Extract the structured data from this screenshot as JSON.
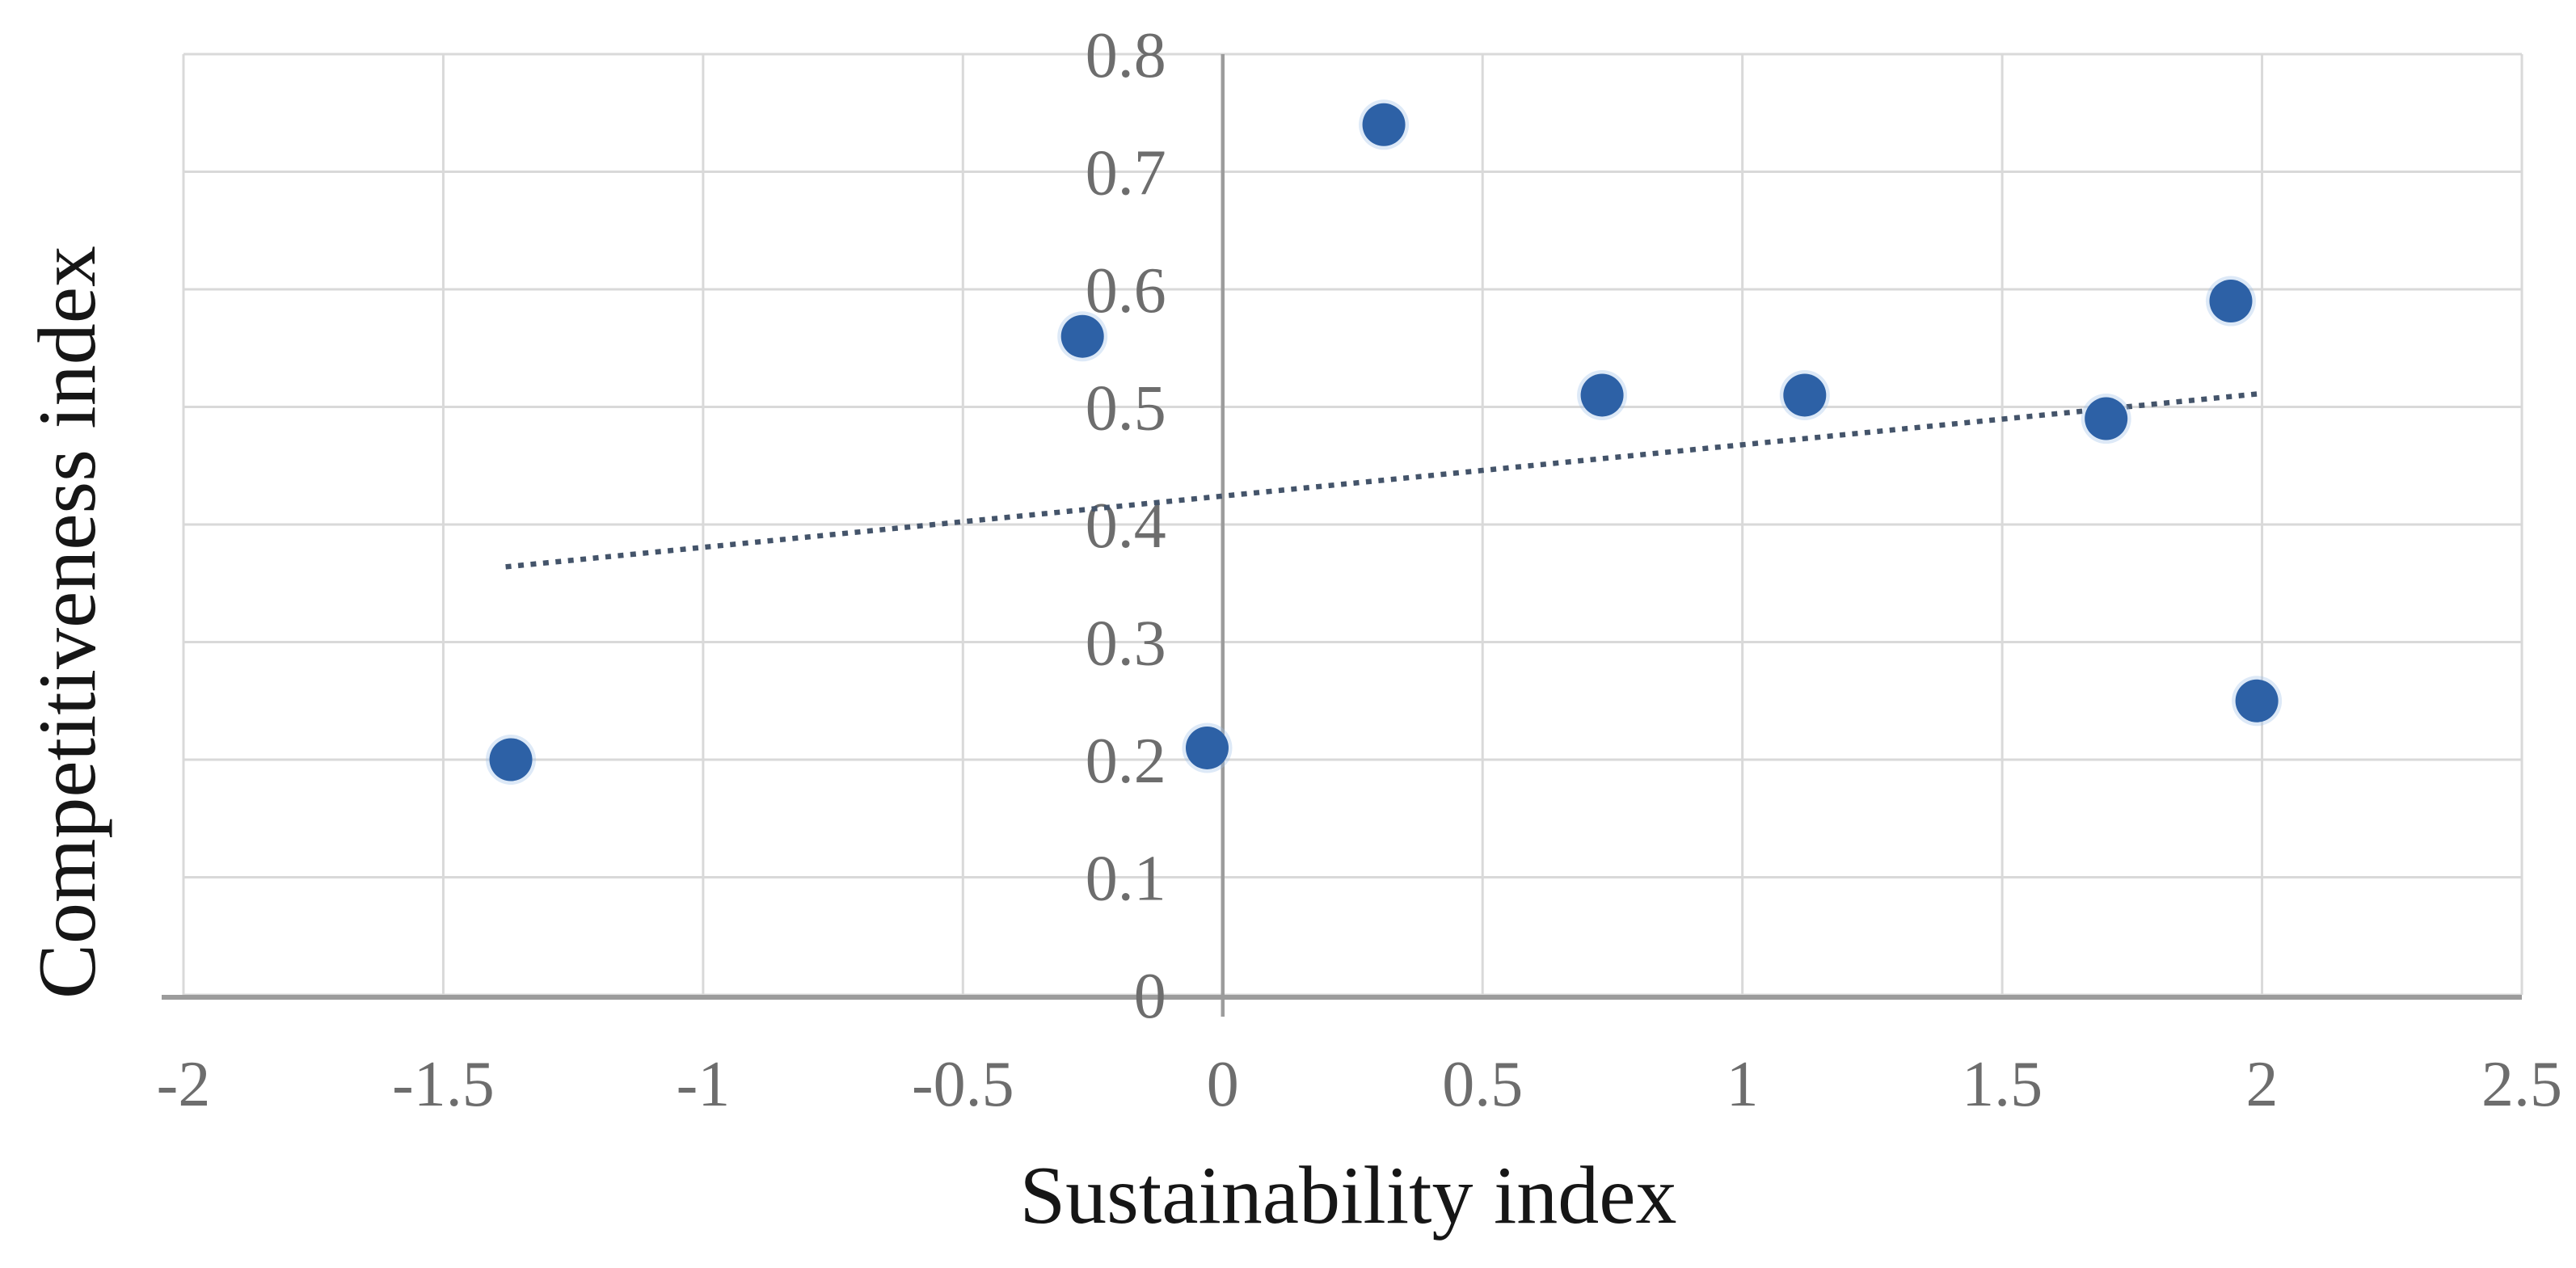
{
  "chart_data": {
    "type": "scatter",
    "title": "",
    "xlabel": "Sustainability index",
    "ylabel": "Competitiveness index",
    "xlim": [
      -2,
      2.5
    ],
    "ylim": [
      0,
      0.8
    ],
    "grid": true,
    "legend": "none",
    "x_ticks": [
      -2,
      -1.5,
      -1,
      -0.5,
      0,
      0.5,
      1,
      1.5,
      2,
      2.5
    ],
    "x_tick_labels": [
      "-2",
      "-1.5",
      "-1",
      "-0.5",
      "0",
      "0.5",
      "1",
      "1.5",
      "2",
      "2.5"
    ],
    "y_ticks": [
      0,
      0.1,
      0.2,
      0.3,
      0.4,
      0.5,
      0.6,
      0.7,
      0.8
    ],
    "y_tick_labels": [
      "0",
      "0.1",
      "0.2",
      "0.3",
      "0.4",
      "0.5",
      "0.6",
      "0.7",
      "0.8"
    ],
    "points": [
      {
        "x": -1.37,
        "y": 0.2
      },
      {
        "x": -0.27,
        "y": 0.56
      },
      {
        "x": -0.03,
        "y": 0.21
      },
      {
        "x": 0.31,
        "y": 0.74
      },
      {
        "x": 0.73,
        "y": 0.51
      },
      {
        "x": 1.12,
        "y": 0.51
      },
      {
        "x": 1.7,
        "y": 0.49
      },
      {
        "x": 1.94,
        "y": 0.59
      },
      {
        "x": 1.99,
        "y": 0.25
      }
    ],
    "trendline": {
      "style": "dotted",
      "x1": -1.38,
      "y1": 0.364,
      "x2": 1.99,
      "y2": 0.511
    },
    "colors": {
      "marker": "#2d61a6",
      "marker_halo": "#9fc0e8",
      "trendline": "#44546a",
      "gridline": "#d9d9d9",
      "axis_line": "#9c9c9c",
      "tick_label": "#6d6d6d",
      "axis_title": "#161616",
      "background": "#ffffff"
    }
  }
}
